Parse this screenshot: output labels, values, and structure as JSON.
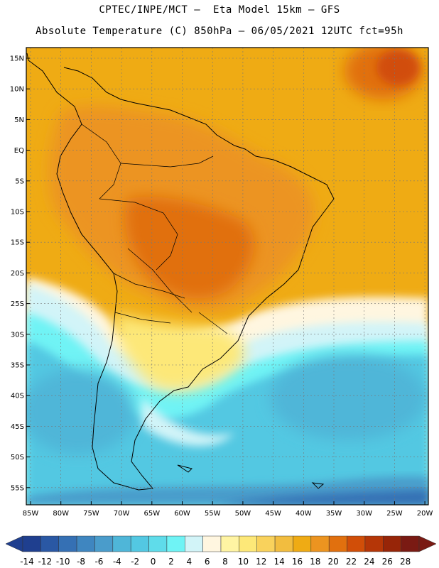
{
  "title_line1": "CPTEC/INPE/MCT –  Eta Model 15km – GFS",
  "title_line2": "Absolute Temperature (C) 850hPa – 06/05/2021 12UTC fct=95h",
  "lat_labels": [
    "15N",
    "10N",
    "5N",
    "EQ",
    "5S",
    "10S",
    "15S",
    "20S",
    "25S",
    "30S",
    "35S",
    "40S",
    "45S",
    "50S",
    "55S"
  ],
  "lon_labels": [
    "85W",
    "80W",
    "75W",
    "70W",
    "65W",
    "60W",
    "55W",
    "50W",
    "45W",
    "40W",
    "35W",
    "30W",
    "25W",
    "20W"
  ],
  "colorbar": {
    "labels": [
      "-14",
      "-12",
      "-10",
      "-8",
      "-6",
      "-4",
      "-2",
      "0",
      "2",
      "4",
      "6",
      "8",
      "10",
      "12",
      "14",
      "16",
      "18",
      "20",
      "22",
      "24",
      "26",
      "28"
    ],
    "colors": [
      "#1f3f8f",
      "#2a58a4",
      "#3570b4",
      "#3f86c0",
      "#4a9ccb",
      "#4fb6d8",
      "#53c8e2",
      "#5fdcea",
      "#6ff3f5",
      "#d2f4f8",
      "#fff6e0",
      "#fff4a3",
      "#fde878",
      "#f9d25c",
      "#f2bd3f",
      "#efab14",
      "#ec9420",
      "#e1700e",
      "#d14e08",
      "#b53607",
      "#972508",
      "#7a1a13"
    ]
  },
  "colors": {
    "ocean_tropical": "#efab14",
    "land_warm": "#ec9420",
    "land_hot": "#e1700e",
    "ocean_cool": "#53c8e2",
    "ocean_cold": "#4a9ccb",
    "transition": "#fff6e0",
    "coast": "#000000"
  }
}
